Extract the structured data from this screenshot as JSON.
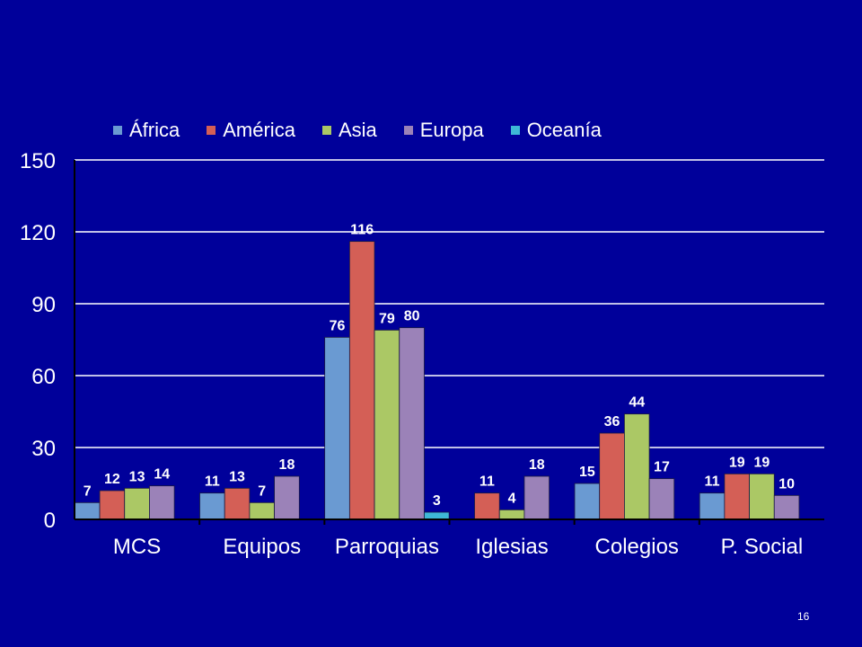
{
  "page_number": "16",
  "colors": {
    "background": "#00009A",
    "axis": "#000000",
    "gridline": "#ffffff",
    "text": "#ffffff"
  },
  "chart_data": {
    "type": "bar",
    "categories": [
      "MCS",
      "Equipos",
      "Parroquias",
      "Iglesias",
      "Colegios",
      "P. Social"
    ],
    "ylim": [
      0,
      150
    ],
    "yticks": [
      0,
      30,
      60,
      90,
      120,
      150
    ],
    "grid": true,
    "legend_position": "top",
    "series": [
      {
        "name": "África",
        "color": "#6A9AD2",
        "values": [
          7,
          11,
          76,
          null,
          15,
          11
        ]
      },
      {
        "name": "América",
        "color": "#D45F56",
        "values": [
          12,
          13,
          116,
          11,
          36,
          19
        ]
      },
      {
        "name": "Asia",
        "color": "#ABC865",
        "values": [
          13,
          7,
          79,
          4,
          44,
          19
        ]
      },
      {
        "name": "Europa",
        "color": "#9B82B8",
        "values": [
          14,
          18,
          80,
          18,
          17,
          10
        ]
      },
      {
        "name": "Oceanía",
        "color": "#3EB8D6",
        "values": [
          null,
          null,
          3,
          null,
          null,
          null
        ]
      }
    ]
  }
}
